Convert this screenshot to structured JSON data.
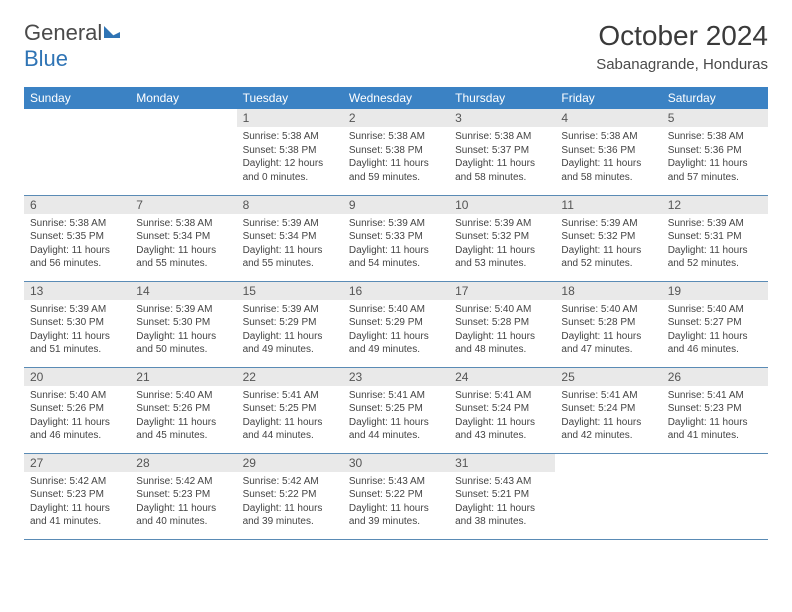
{
  "logo": {
    "text1": "General",
    "text2": "Blue"
  },
  "title": "October 2024",
  "location": "Sabanagrande, Honduras",
  "colors": {
    "header_bg": "#3b82c4",
    "header_text": "#ffffff",
    "daynum_bg": "#e9e9e9",
    "row_border": "#5a8bb5",
    "logo_blue": "#2f74b5",
    "logo_shape": "#2f74b5"
  },
  "weekdays": [
    "Sunday",
    "Monday",
    "Tuesday",
    "Wednesday",
    "Thursday",
    "Friday",
    "Saturday"
  ],
  "weeks": [
    [
      null,
      null,
      {
        "n": "1",
        "sr": "Sunrise: 5:38 AM",
        "ss": "Sunset: 5:38 PM",
        "dl": "Daylight: 12 hours and 0 minutes."
      },
      {
        "n": "2",
        "sr": "Sunrise: 5:38 AM",
        "ss": "Sunset: 5:38 PM",
        "dl": "Daylight: 11 hours and 59 minutes."
      },
      {
        "n": "3",
        "sr": "Sunrise: 5:38 AM",
        "ss": "Sunset: 5:37 PM",
        "dl": "Daylight: 11 hours and 58 minutes."
      },
      {
        "n": "4",
        "sr": "Sunrise: 5:38 AM",
        "ss": "Sunset: 5:36 PM",
        "dl": "Daylight: 11 hours and 58 minutes."
      },
      {
        "n": "5",
        "sr": "Sunrise: 5:38 AM",
        "ss": "Sunset: 5:36 PM",
        "dl": "Daylight: 11 hours and 57 minutes."
      }
    ],
    [
      {
        "n": "6",
        "sr": "Sunrise: 5:38 AM",
        "ss": "Sunset: 5:35 PM",
        "dl": "Daylight: 11 hours and 56 minutes."
      },
      {
        "n": "7",
        "sr": "Sunrise: 5:38 AM",
        "ss": "Sunset: 5:34 PM",
        "dl": "Daylight: 11 hours and 55 minutes."
      },
      {
        "n": "8",
        "sr": "Sunrise: 5:39 AM",
        "ss": "Sunset: 5:34 PM",
        "dl": "Daylight: 11 hours and 55 minutes."
      },
      {
        "n": "9",
        "sr": "Sunrise: 5:39 AM",
        "ss": "Sunset: 5:33 PM",
        "dl": "Daylight: 11 hours and 54 minutes."
      },
      {
        "n": "10",
        "sr": "Sunrise: 5:39 AM",
        "ss": "Sunset: 5:32 PM",
        "dl": "Daylight: 11 hours and 53 minutes."
      },
      {
        "n": "11",
        "sr": "Sunrise: 5:39 AM",
        "ss": "Sunset: 5:32 PM",
        "dl": "Daylight: 11 hours and 52 minutes."
      },
      {
        "n": "12",
        "sr": "Sunrise: 5:39 AM",
        "ss": "Sunset: 5:31 PM",
        "dl": "Daylight: 11 hours and 52 minutes."
      }
    ],
    [
      {
        "n": "13",
        "sr": "Sunrise: 5:39 AM",
        "ss": "Sunset: 5:30 PM",
        "dl": "Daylight: 11 hours and 51 minutes."
      },
      {
        "n": "14",
        "sr": "Sunrise: 5:39 AM",
        "ss": "Sunset: 5:30 PM",
        "dl": "Daylight: 11 hours and 50 minutes."
      },
      {
        "n": "15",
        "sr": "Sunrise: 5:39 AM",
        "ss": "Sunset: 5:29 PM",
        "dl": "Daylight: 11 hours and 49 minutes."
      },
      {
        "n": "16",
        "sr": "Sunrise: 5:40 AM",
        "ss": "Sunset: 5:29 PM",
        "dl": "Daylight: 11 hours and 49 minutes."
      },
      {
        "n": "17",
        "sr": "Sunrise: 5:40 AM",
        "ss": "Sunset: 5:28 PM",
        "dl": "Daylight: 11 hours and 48 minutes."
      },
      {
        "n": "18",
        "sr": "Sunrise: 5:40 AM",
        "ss": "Sunset: 5:28 PM",
        "dl": "Daylight: 11 hours and 47 minutes."
      },
      {
        "n": "19",
        "sr": "Sunrise: 5:40 AM",
        "ss": "Sunset: 5:27 PM",
        "dl": "Daylight: 11 hours and 46 minutes."
      }
    ],
    [
      {
        "n": "20",
        "sr": "Sunrise: 5:40 AM",
        "ss": "Sunset: 5:26 PM",
        "dl": "Daylight: 11 hours and 46 minutes."
      },
      {
        "n": "21",
        "sr": "Sunrise: 5:40 AM",
        "ss": "Sunset: 5:26 PM",
        "dl": "Daylight: 11 hours and 45 minutes."
      },
      {
        "n": "22",
        "sr": "Sunrise: 5:41 AM",
        "ss": "Sunset: 5:25 PM",
        "dl": "Daylight: 11 hours and 44 minutes."
      },
      {
        "n": "23",
        "sr": "Sunrise: 5:41 AM",
        "ss": "Sunset: 5:25 PM",
        "dl": "Daylight: 11 hours and 44 minutes."
      },
      {
        "n": "24",
        "sr": "Sunrise: 5:41 AM",
        "ss": "Sunset: 5:24 PM",
        "dl": "Daylight: 11 hours and 43 minutes."
      },
      {
        "n": "25",
        "sr": "Sunrise: 5:41 AM",
        "ss": "Sunset: 5:24 PM",
        "dl": "Daylight: 11 hours and 42 minutes."
      },
      {
        "n": "26",
        "sr": "Sunrise: 5:41 AM",
        "ss": "Sunset: 5:23 PM",
        "dl": "Daylight: 11 hours and 41 minutes."
      }
    ],
    [
      {
        "n": "27",
        "sr": "Sunrise: 5:42 AM",
        "ss": "Sunset: 5:23 PM",
        "dl": "Daylight: 11 hours and 41 minutes."
      },
      {
        "n": "28",
        "sr": "Sunrise: 5:42 AM",
        "ss": "Sunset: 5:23 PM",
        "dl": "Daylight: 11 hours and 40 minutes."
      },
      {
        "n": "29",
        "sr": "Sunrise: 5:42 AM",
        "ss": "Sunset: 5:22 PM",
        "dl": "Daylight: 11 hours and 39 minutes."
      },
      {
        "n": "30",
        "sr": "Sunrise: 5:43 AM",
        "ss": "Sunset: 5:22 PM",
        "dl": "Daylight: 11 hours and 39 minutes."
      },
      {
        "n": "31",
        "sr": "Sunrise: 5:43 AM",
        "ss": "Sunset: 5:21 PM",
        "dl": "Daylight: 11 hours and 38 minutes."
      },
      null,
      null
    ]
  ]
}
